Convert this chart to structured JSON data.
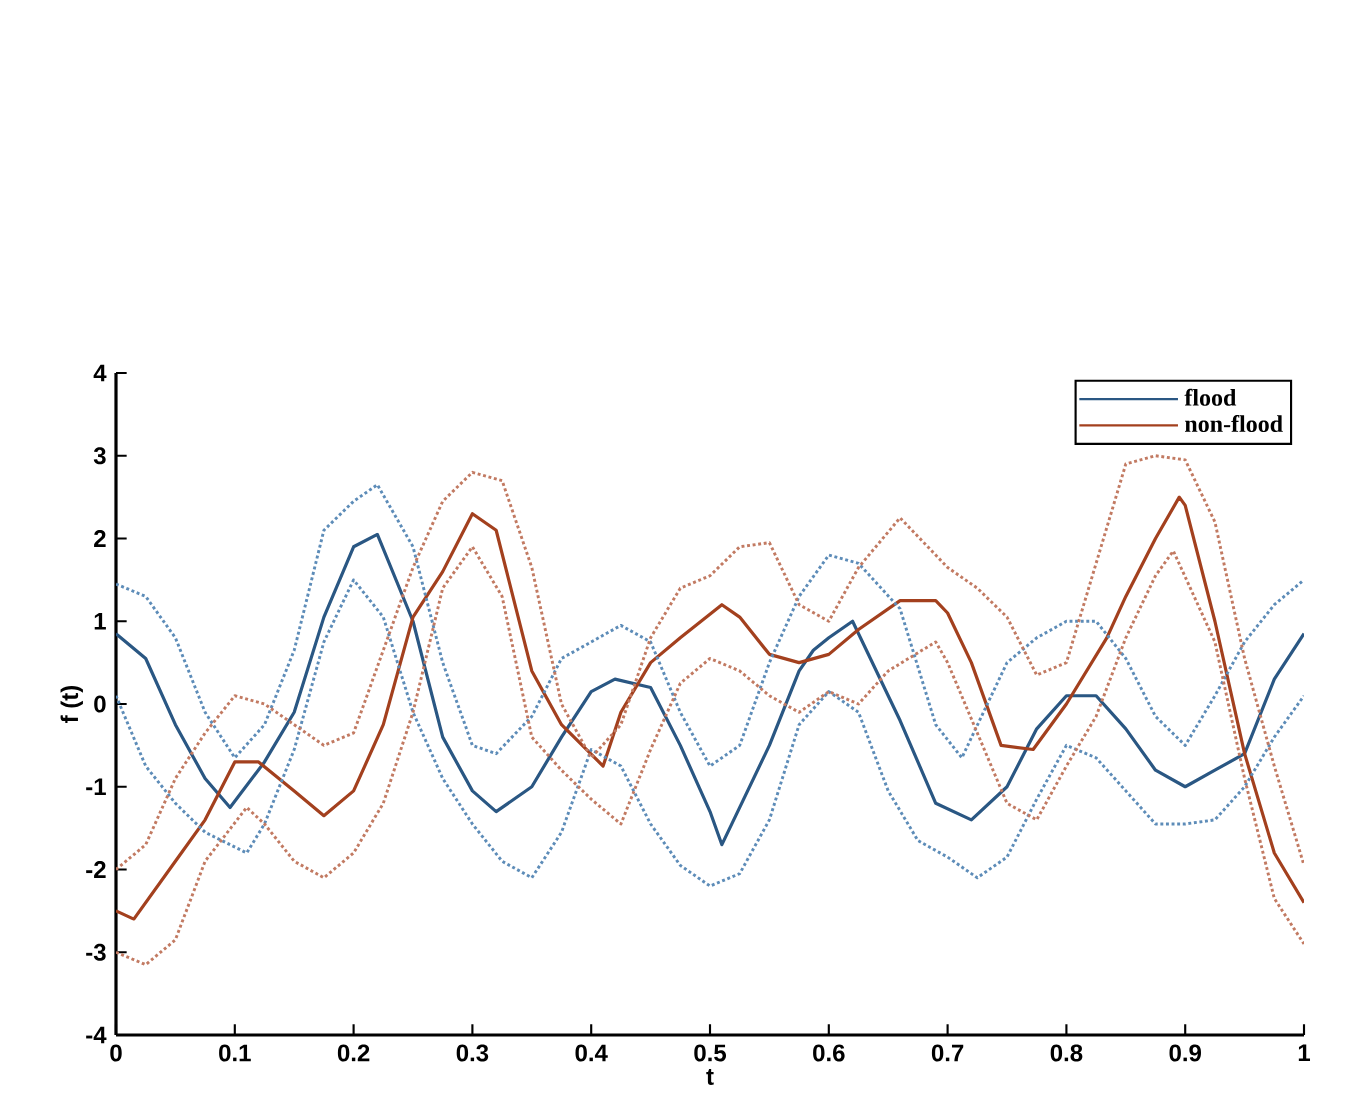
{
  "chart_data": {
    "type": "line",
    "xlabel": "t",
    "ylabel": "f (t)",
    "xlim": [
      0,
      1
    ],
    "ylim": [
      -4,
      4
    ],
    "xticks": [
      0,
      0.1,
      0.2,
      0.3,
      0.4,
      0.5,
      0.6,
      0.7,
      0.8,
      0.9,
      1
    ],
    "yticks": [
      -4,
      -3,
      -2,
      -1,
      0,
      1,
      2,
      3,
      4
    ],
    "legend": "top right",
    "grid": false,
    "series": [
      {
        "name": "flood",
        "color": "#2a5783",
        "line_style": "solid",
        "x": [
          0,
          0.025,
          0.05,
          0.075,
          0.096,
          0.125,
          0.15,
          0.175,
          0.2,
          0.22,
          0.25,
          0.275,
          0.3,
          0.32,
          0.35,
          0.375,
          0.4,
          0.42,
          0.45,
          0.475,
          0.5,
          0.51,
          0.55,
          0.575,
          0.587,
          0.6,
          0.62,
          0.65,
          0.66,
          0.69,
          0.72,
          0.75,
          0.775,
          0.8,
          0.825,
          0.85,
          0.875,
          0.9,
          0.925,
          0.95,
          0.975,
          1
        ],
        "values": [
          0.85,
          0.55,
          -0.25,
          -0.9,
          -1.25,
          -0.7,
          -0.1,
          1.05,
          1.9,
          2.05,
          1.0,
          -0.4,
          -1.05,
          -1.3,
          -1.0,
          -0.4,
          0.15,
          0.3,
          0.2,
          -0.5,
          -1.3,
          -1.7,
          -0.5,
          0.4,
          0.65,
          0.8,
          1.0,
          0.1,
          -0.2,
          -1.2,
          -1.4,
          -1.0,
          -0.3,
          0.1,
          0.1,
          -0.3,
          -0.8,
          -1.0,
          -0.8,
          -0.6,
          0.3,
          0.85
        ]
      },
      {
        "name": "non-flood",
        "color": "#a3401e",
        "line_style": "solid",
        "x": [
          0,
          0.015,
          0.05,
          0.075,
          0.1,
          0.12,
          0.15,
          0.175,
          0.2,
          0.225,
          0.25,
          0.275,
          0.3,
          0.32,
          0.35,
          0.375,
          0.41,
          0.425,
          0.45,
          0.475,
          0.51,
          0.525,
          0.55,
          0.575,
          0.6,
          0.625,
          0.66,
          0.69,
          0.7,
          0.72,
          0.745,
          0.772,
          0.8,
          0.834,
          0.85,
          0.875,
          0.895,
          0.9,
          0.925,
          0.95,
          0.975,
          1
        ],
        "values": [
          -2.5,
          -2.6,
          -1.9,
          -1.4,
          -0.7,
          -0.7,
          -1.05,
          -1.35,
          -1.05,
          -0.25,
          1.05,
          1.6,
          2.3,
          2.1,
          0.4,
          -0.25,
          -0.75,
          -0.1,
          0.5,
          0.8,
          1.2,
          1.05,
          0.6,
          0.5,
          0.6,
          0.9,
          1.25,
          1.25,
          1.1,
          0.5,
          -0.5,
          -0.55,
          0.0,
          0.8,
          1.3,
          2.0,
          2.5,
          2.4,
          1.0,
          -0.6,
          -1.8,
          -2.4
        ]
      },
      {
        "color": "#5d8cb8",
        "line_style": "dotted",
        "x": [
          0,
          0.025,
          0.05,
          0.075,
          0.1,
          0.125,
          0.15,
          0.175,
          0.2,
          0.22,
          0.25,
          0.275,
          0.3,
          0.32,
          0.35,
          0.375,
          0.4,
          0.425,
          0.45,
          0.475,
          0.5,
          0.525,
          0.55,
          0.575,
          0.6,
          0.625,
          0.66,
          0.69,
          0.712,
          0.75,
          0.775,
          0.8,
          0.825,
          0.85,
          0.875,
          0.9,
          0.925,
          0.95,
          0.975,
          1
        ],
        "values": [
          1.45,
          1.3,
          0.8,
          -0.1,
          -0.65,
          -0.25,
          0.65,
          2.1,
          2.45,
          2.65,
          1.9,
          0.5,
          -0.5,
          -0.6,
          -0.15,
          0.55,
          0.75,
          0.95,
          0.75,
          -0.1,
          -0.75,
          -0.5,
          0.5,
          1.3,
          1.8,
          1.7,
          1.15,
          -0.25,
          -0.65,
          0.5,
          0.8,
          1.0,
          1.0,
          0.55,
          -0.15,
          -0.5,
          0.1,
          0.75,
          1.2,
          1.5
        ]
      },
      {
        "color": "#5d8cb8",
        "line_style": "dotted",
        "x": [
          0,
          0.025,
          0.05,
          0.075,
          0.11,
          0.125,
          0.15,
          0.175,
          0.2,
          0.225,
          0.25,
          0.275,
          0.3,
          0.325,
          0.35,
          0.375,
          0.4,
          0.425,
          0.45,
          0.475,
          0.5,
          0.525,
          0.55,
          0.575,
          0.6,
          0.625,
          0.65,
          0.675,
          0.7,
          0.725,
          0.75,
          0.775,
          0.8,
          0.825,
          0.85,
          0.875,
          0.9,
          0.925,
          0.95,
          0.975,
          1
        ],
        "values": [
          0.1,
          -0.75,
          -1.2,
          -1.55,
          -1.8,
          -1.45,
          -0.55,
          0.75,
          1.5,
          1.05,
          -0.1,
          -0.9,
          -1.45,
          -1.9,
          -2.1,
          -1.55,
          -0.55,
          -0.75,
          -1.45,
          -1.95,
          -2.2,
          -2.05,
          -1.4,
          -0.25,
          0.15,
          -0.1,
          -1.05,
          -1.65,
          -1.85,
          -2.1,
          -1.85,
          -1.15,
          -0.5,
          -0.65,
          -1.05,
          -1.45,
          -1.45,
          -1.4,
          -1.0,
          -0.4,
          0.1
        ]
      },
      {
        "color": "#c27a62",
        "line_style": "dotted",
        "x": [
          0,
          0.025,
          0.05,
          0.075,
          0.1,
          0.125,
          0.15,
          0.175,
          0.2,
          0.225,
          0.25,
          0.275,
          0.3,
          0.325,
          0.35,
          0.375,
          0.4,
          0.425,
          0.45,
          0.475,
          0.5,
          0.525,
          0.55,
          0.575,
          0.6,
          0.625,
          0.66,
          0.7,
          0.725,
          0.75,
          0.775,
          0.8,
          0.825,
          0.85,
          0.875,
          0.9,
          0.925,
          0.95,
          0.975,
          1
        ],
        "values": [
          -2.0,
          -1.7,
          -0.9,
          -0.35,
          0.1,
          0.0,
          -0.25,
          -0.5,
          -0.35,
          0.65,
          1.65,
          2.45,
          2.8,
          2.7,
          1.65,
          0.0,
          -0.65,
          -0.25,
          0.8,
          1.4,
          1.55,
          1.9,
          1.95,
          1.2,
          1.0,
          1.65,
          2.25,
          1.65,
          1.4,
          1.05,
          0.35,
          0.5,
          1.7,
          2.9,
          3.0,
          2.95,
          2.2,
          0.55,
          -0.75,
          -1.95
        ]
      },
      {
        "color": "#c27a62",
        "line_style": "dotted",
        "x": [
          0,
          0.025,
          0.05,
          0.075,
          0.11,
          0.125,
          0.15,
          0.175,
          0.2,
          0.225,
          0.25,
          0.275,
          0.3,
          0.325,
          0.35,
          0.375,
          0.4,
          0.425,
          0.45,
          0.475,
          0.5,
          0.525,
          0.55,
          0.575,
          0.6,
          0.625,
          0.65,
          0.69,
          0.7,
          0.725,
          0.75,
          0.775,
          0.8,
          0.825,
          0.85,
          0.875,
          0.89,
          0.925,
          0.95,
          0.975,
          1
        ],
        "values": [
          -3.0,
          -3.15,
          -2.85,
          -1.9,
          -1.25,
          -1.45,
          -1.9,
          -2.1,
          -1.8,
          -1.2,
          -0.1,
          1.4,
          1.9,
          1.3,
          -0.4,
          -0.8,
          -1.15,
          -1.45,
          -0.55,
          0.25,
          0.55,
          0.4,
          0.1,
          -0.1,
          0.15,
          0.0,
          0.4,
          0.75,
          0.5,
          -0.35,
          -1.2,
          -1.4,
          -0.75,
          -0.15,
          0.8,
          1.55,
          1.85,
          0.75,
          -0.9,
          -2.35,
          -2.9
        ]
      }
    ]
  }
}
